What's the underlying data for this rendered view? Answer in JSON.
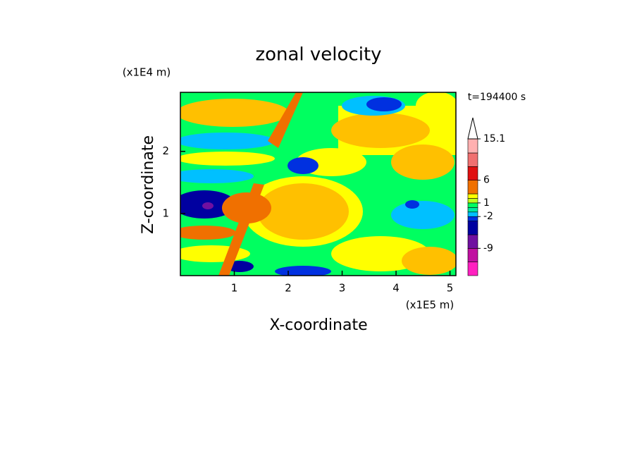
{
  "chart_data": {
    "type": "contour",
    "title": "zonal velocity",
    "xlabel": "X-coordinate",
    "ylabel": "Z-coordinate",
    "x_unit_label": "(x1E5 m)",
    "y_unit_label": "(x1E4 m)",
    "annotation": "t=194400 s",
    "xlim": [
      0,
      5.11
    ],
    "xticks": [
      1,
      2,
      3,
      4,
      5
    ],
    "ylim": [
      0,
      2.95
    ],
    "yticks": [
      1,
      2
    ],
    "colorbar": {
      "levels": [
        -15,
        -12,
        -9,
        -6,
        -3,
        -2,
        -1,
        0,
        1,
        2,
        3,
        6,
        9,
        12,
        15.1
      ],
      "colors": [
        "#ff20c0",
        "#c010a0",
        "#7010a0",
        "#0000a0",
        "#0030e0",
        "#00c0ff",
        "#00e8a0",
        "#00ff60",
        "#c0ff20",
        "#ffff00",
        "#f07000",
        "#e01010",
        "#f07070",
        "#ffb0b0"
      ],
      "ticks": [
        -9,
        -2,
        1,
        6,
        15.1
      ]
    }
  }
}
